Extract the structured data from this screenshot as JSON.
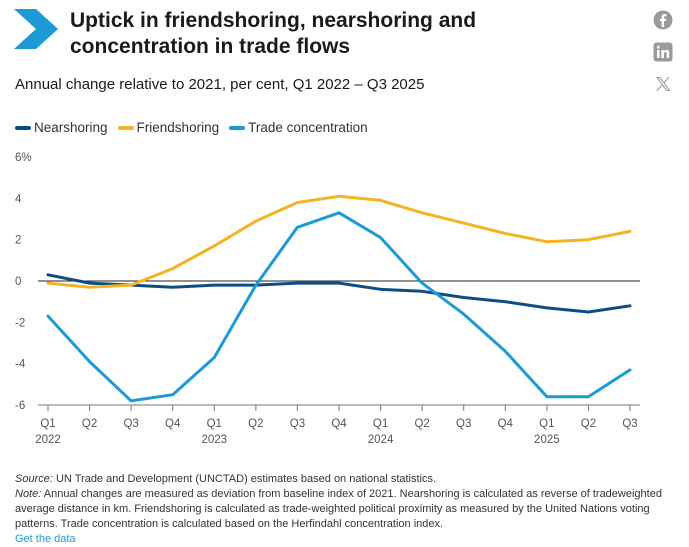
{
  "header": {
    "title_line1": "Uptick in friendshoring, nearshoring and",
    "title_line2": "concentration in trade flows",
    "subtitle": "Annual change relative to 2021, per cent, Q1 2022 – Q3 2025"
  },
  "share_icons": [
    "facebook-icon",
    "linkedin-icon",
    "x-icon"
  ],
  "colors": {
    "nearshoring": "#0f4c81",
    "friendshoring": "#f5b324",
    "trade_concentration": "#1c9ad6",
    "brand": "#1c9ad6"
  },
  "chart_data": {
    "type": "line",
    "title": "Uptick in friendshoring, nearshoring and concentration in trade flows",
    "subtitle": "Annual change relative to 2021, per cent, Q1 2022 – Q3 2025",
    "xlabel": "",
    "ylabel": "",
    "ylim": [
      -6,
      6
    ],
    "yticks": [
      -6,
      -4,
      -2,
      0,
      2,
      4,
      6
    ],
    "ytick_labels": [
      "-6",
      "-4",
      "-2",
      "0",
      "2",
      "4",
      "6%"
    ],
    "grid": false,
    "legend_position": "top-left",
    "categories": [
      "Q1",
      "Q2",
      "Q3",
      "Q4",
      "Q1",
      "Q2",
      "Q3",
      "Q4",
      "Q1",
      "Q2",
      "Q3",
      "Q4",
      "Q1",
      "Q2",
      "Q3"
    ],
    "year_labels": [
      {
        "label": "2022",
        "index": 0
      },
      {
        "label": "2023",
        "index": 4
      },
      {
        "label": "2024",
        "index": 8
      },
      {
        "label": "2025",
        "index": 12
      }
    ],
    "series": [
      {
        "name": "Nearshoring",
        "key": "nearshoring",
        "values": [
          0.3,
          -0.1,
          -0.2,
          -0.3,
          -0.2,
          -0.2,
          -0.1,
          -0.1,
          -0.4,
          -0.5,
          -0.8,
          -1.0,
          -1.3,
          -1.5,
          -1.2
        ]
      },
      {
        "name": "Friendshoring",
        "key": "friendshoring",
        "values": [
          -0.1,
          -0.3,
          -0.2,
          0.6,
          1.7,
          2.9,
          3.8,
          4.1,
          3.9,
          3.3,
          2.8,
          2.3,
          1.9,
          2.0,
          2.4
        ]
      },
      {
        "name": "Trade concentration",
        "key": "trade_concentration",
        "values": [
          -1.7,
          -3.9,
          -5.8,
          -5.5,
          -3.7,
          -0.2,
          2.6,
          3.3,
          2.1,
          -0.1,
          -1.6,
          -3.4,
          -5.6,
          -5.6,
          -4.3
        ]
      }
    ]
  },
  "footer": {
    "source_label": "Source:",
    "source_text": " UN Trade and Development (UNCTAD) estimates based on national statistics.",
    "note_label": "Note:",
    "note_text": " Annual changes are measured as deviation from baseline index of 2021. Nearshoring is calculated as reverse of tradeweighted average distance in km. Friendshoring is calculated as trade-weighted political proximity as measured by the United Nations voting patterns. Trade concentration is calculated based on the Herfindahl concentration index.",
    "link_text": "Get the data"
  }
}
